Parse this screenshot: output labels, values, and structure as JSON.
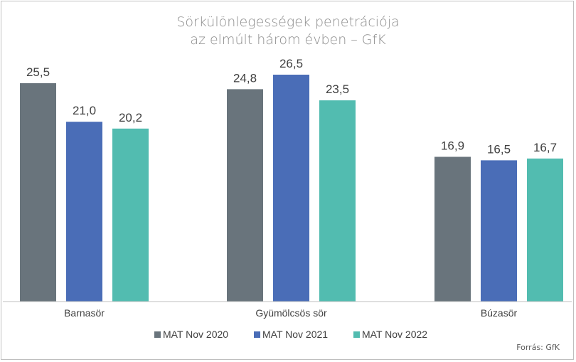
{
  "chart_data": {
    "type": "bar",
    "title": [
      "Sörkülönlegességek penetrációja",
      "az elmúlt három évben  – GfK"
    ],
    "categories": [
      "Barnasör",
      "Gyümölcsös sör",
      "Búzasör"
    ],
    "series": [
      {
        "name": "MAT Nov 2020",
        "color": "#69747c",
        "values": [
          25.5,
          24.8,
          16.9
        ]
      },
      {
        "name": "MAT Nov 2021",
        "color": "#4a6db7",
        "values": [
          21.0,
          26.5,
          16.5
        ]
      },
      {
        "name": "MAT Nov 2022",
        "color": "#52bcb0",
        "values": [
          20.2,
          23.5,
          16.7
        ]
      }
    ],
    "value_labels": [
      [
        "25,5",
        "24,8",
        "16,9"
      ],
      [
        "21,0",
        "26,5",
        "16,5"
      ],
      [
        "20,2",
        "23,5",
        "16,7"
      ]
    ],
    "ylim": [
      0,
      30
    ],
    "grid": false,
    "legend_position": "bottom",
    "source": "Forrás: GfK"
  }
}
